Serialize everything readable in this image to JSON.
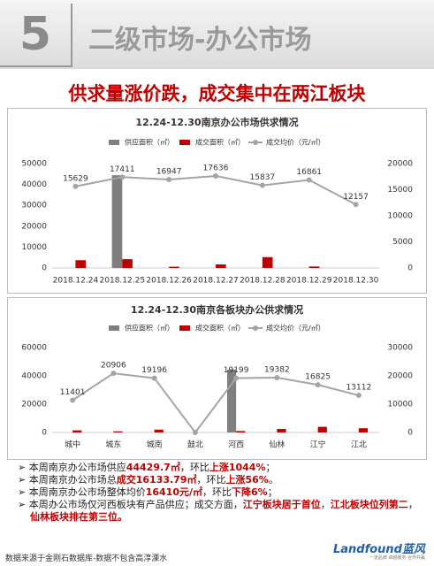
{
  "header": {
    "number": "5",
    "title": "二级市场-办公市场",
    "headline": "供求量涨价跌，成交集中在两江板块"
  },
  "chart_data": [
    {
      "type": "bar-line",
      "title": "12.24-12.30南京办公市场供求情况",
      "categories": [
        "2018.12.24",
        "2018.12.25",
        "2018.12.26",
        "2018.12.27",
        "2018.12.28",
        "2018.12.29",
        "2018.12.30"
      ],
      "series": [
        {
          "name": "供应面积（㎡）",
          "color": "#7f7f7f",
          "kind": "bar",
          "values": [
            0,
            44429.7,
            0,
            0,
            0,
            0,
            0
          ]
        },
        {
          "name": "成交面积（㎡）",
          "color": "#c00000",
          "kind": "bar",
          "values": [
            3700,
            4200,
            600,
            1700,
            5200,
            700,
            0
          ]
        },
        {
          "name": "成交均价（元/㎡）",
          "color": "#a5a5a5",
          "kind": "line",
          "axis": "y2",
          "values": [
            15629,
            17411,
            16947,
            17636,
            15837,
            16861,
            12157
          ]
        }
      ],
      "ylim": [
        0,
        50000
      ],
      "yticks": [
        0,
        10000,
        20000,
        30000,
        40000,
        50000
      ],
      "y2lim": [
        0,
        20000
      ],
      "y2ticks": [
        0,
        5000,
        10000,
        15000,
        20000
      ]
    },
    {
      "type": "bar-line",
      "title": "12.24-12.30南京各板块办公供求情况",
      "categories": [
        "城中",
        "城东",
        "城南",
        "鼓北",
        "河西",
        "仙林",
        "江宁",
        "江北"
      ],
      "series": [
        {
          "name": "供应面积（㎡）",
          "color": "#7f7f7f",
          "kind": "bar",
          "values": [
            0,
            0,
            0,
            0,
            44429.7,
            0,
            0,
            0
          ]
        },
        {
          "name": "成交面积（㎡）",
          "color": "#c00000",
          "kind": "bar",
          "values": [
            1500,
            800,
            2000,
            0,
            1000,
            2500,
            4000,
            3000
          ]
        },
        {
          "name": "成交均价（元/㎡）",
          "color": "#a5a5a5",
          "kind": "line",
          "axis": "y2",
          "values": [
            11401,
            20906,
            19196,
            0,
            19199,
            19382,
            16825,
            13112
          ],
          "value_labels": [
            "11401",
            "20906",
            "19196",
            null,
            "19199",
            "19382",
            "16825",
            "13112"
          ]
        }
      ],
      "ylim": [
        0,
        60000
      ],
      "yticks": [
        0,
        20000,
        40000,
        60000
      ],
      "y2lim": [
        0,
        30000
      ],
      "y2ticks": [
        0,
        10000,
        20000,
        30000
      ]
    }
  ],
  "bullets": [
    [
      {
        "text": "本周南京办公市场供应"
      },
      {
        "text": "44429.7㎡",
        "red": true
      },
      {
        "text": "，环比"
      },
      {
        "text": "上涨1044%",
        "red": true
      },
      {
        "text": "；"
      }
    ],
    [
      {
        "text": "本周南京办公市场总"
      },
      {
        "text": "成交16133.79㎡",
        "red": true
      },
      {
        "text": "，环比"
      },
      {
        "text": "上涨56%",
        "red": true
      },
      {
        "text": "。"
      }
    ],
    [
      {
        "text": "本周南京办公市场整体均价"
      },
      {
        "text": "16410元/㎡",
        "red": true
      },
      {
        "text": "，环比"
      },
      {
        "text": "下降6%",
        "red": true
      },
      {
        "text": "；"
      }
    ],
    [
      {
        "text": "本周办公市场仅河西板块有产品供应；成交方面，"
      },
      {
        "text": "江宁板块居于首位",
        "red": true
      },
      {
        "text": "，"
      },
      {
        "text": "江北板块位列第二",
        "red": true
      },
      {
        "text": "，"
      },
      {
        "text": "仙林板块排在第三位。",
        "red": true
      }
    ]
  ],
  "footer": {
    "source": "数据来源于金刚石数据库-数据不包含高淳溧水",
    "logo": "Landfound蓝风",
    "tagline": "一流品牌 卓越服务 合作共赢"
  }
}
